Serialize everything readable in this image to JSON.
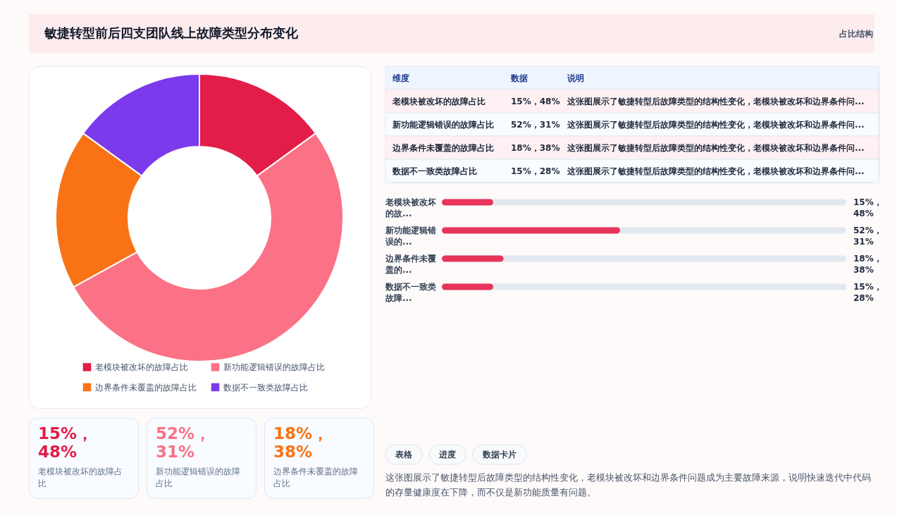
{
  "chart_data": [
    {
      "type": "other",
      "title": "敏捷转型前后四支团队线上故障类型分布变化",
      "subtitle": "占比结构"
    },
    {
      "type": "donut",
      "categories": [
        "老模块被改坏的故障占比",
        "新功能逻辑错误的故障占比",
        "边界条件未覆盖的故障占比",
        "数据不一致类故障占比"
      ],
      "values": [
        15,
        52,
        18,
        15
      ],
      "colors": [
        "#e11d48",
        "#fb7185",
        "#f97316",
        "#7c3aed"
      ],
      "legend": "bottom"
    },
    {
      "type": "other",
      "categories": [
        "维度",
        "数据",
        "说明"
      ],
      "cell_labels": [
        [
          "老模块被改坏的故障占比",
          "15%，48%",
          "这张图展示了敏捷转型后故障类型的结构性变化，老模块被改坏和边界条件问..."
        ],
        [
          "新功能逻辑错误的故障占比",
          "52%，31%",
          "这张图展示了敏捷转型后故障类型的结构性变化，老模块被改坏和边界条件问..."
        ],
        [
          "边界条件未覆盖的故障占比",
          "18%，38%",
          "这张图展示了敏捷转型后故障类型的结构性变化，老模块被改坏和边界条件问..."
        ],
        [
          "数据不一致类故障占比",
          "15%，28%",
          "这张图展示了敏捷转型后故障类型的结构性变化，老模块被改坏和边界条件问..."
        ]
      ]
    },
    {
      "type": "bar",
      "orientation": "horizontal",
      "categories": [
        "老模块被改坏的故...",
        "新功能逻辑错误的...",
        "边界条件未覆盖的...",
        "数据不一致类故障..."
      ],
      "values": [
        15,
        52,
        18,
        15
      ],
      "value_labels": [
        "15%，48%",
        "52%，31%",
        "18%，38%",
        "15%，28%"
      ],
      "colors": [
        "#e8345a",
        "#e8345a",
        "#e8345a",
        "#e8345a"
      ],
      "xlim": [
        0,
        118
      ],
      "tick_labels": "y"
    },
    {
      "type": "other",
      "value_labels": [
        "15%，48%",
        "52%，31%",
        "18%，38%"
      ],
      "colors": [
        "#e11d48",
        "#fb7185",
        "#f97316"
      ],
      "annotations": [
        "老模块被改坏的故障占比",
        "新功能逻辑错误的故障占比",
        "边界条件未覆盖的故障占比"
      ]
    },
    {
      "type": "other",
      "categories": [
        "表格",
        "进度",
        "数据卡片"
      ],
      "annotations": [
        "这张图展示了敏捷转型后故障类型的结构性变化，老模块被改坏和边界条件问题成为主要故障来源，说明快速迭代中代码的存量健康度在下降，而不仅是新功能质量有问题。"
      ]
    }
  ]
}
